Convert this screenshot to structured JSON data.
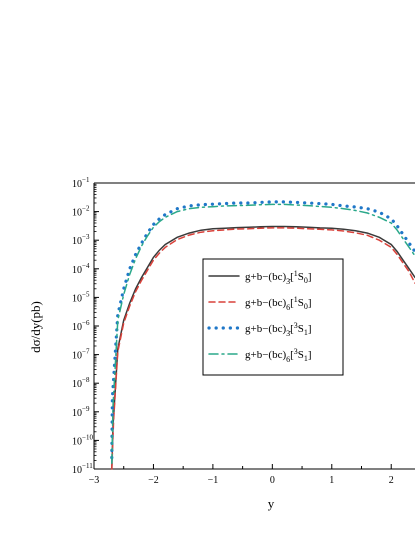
{
  "chart_data": {
    "type": "line",
    "xlabel": "y",
    "ylabel": "dσ/dy(pb)",
    "xlim": [
      -3,
      2.4
    ],
    "ylim_log10": [
      -11,
      -1
    ],
    "yscale": "log",
    "x_ticks": [
      "−3",
      "−2",
      "−1",
      "0",
      "1",
      "2"
    ],
    "y_ticks": [
      {
        "exp": -11,
        "base": "10",
        "sup": "−11"
      },
      {
        "exp": -10,
        "base": "10",
        "sup": "−10"
      },
      {
        "exp": -9,
        "base": "10",
        "sup": "−9"
      },
      {
        "exp": -8,
        "base": "10",
        "sup": "−8"
      },
      {
        "exp": -7,
        "base": "10",
        "sup": "−7"
      },
      {
        "exp": -6,
        "base": "10",
        "sup": "−6"
      },
      {
        "exp": -5,
        "base": "10",
        "sup": "−5"
      },
      {
        "exp": -4,
        "base": "10",
        "sup": "−4"
      },
      {
        "exp": -3,
        "base": "10",
        "sup": "−3"
      },
      {
        "exp": -2,
        "base": "10",
        "sup": "−2"
      },
      {
        "exp": -1,
        "base": "10",
        "sup": "−1"
      }
    ],
    "grid": false,
    "legend_position": "center",
    "series": [
      {
        "name": "g+b−(bc)3[1S0]",
        "label_parts": [
          "g+b−(bc)",
          "3̄",
          "[",
          "1",
          "S",
          "0",
          "]"
        ],
        "color": "#3a3a3a",
        "style": "solid",
        "x": [
          -2.7,
          -2.68,
          -2.6,
          -2.5,
          -2.4,
          -2.3,
          -2.2,
          -2.1,
          -2.0,
          -1.9,
          -1.8,
          -1.6,
          -1.4,
          -1.2,
          -1.0,
          -0.8,
          -0.6,
          -0.4,
          -0.2,
          0.0,
          0.2,
          0.4,
          0.6,
          0.8,
          1.0,
          1.2,
          1.4,
          1.6,
          1.8,
          2.0,
          2.1,
          2.2,
          2.3,
          2.4
        ],
        "log10_y": [
          -11,
          -9.5,
          -6.8,
          -5.8,
          -5.2,
          -4.7,
          -4.3,
          -3.95,
          -3.6,
          -3.35,
          -3.15,
          -2.9,
          -2.75,
          -2.65,
          -2.6,
          -2.58,
          -2.56,
          -2.55,
          -2.53,
          -2.52,
          -2.52,
          -2.53,
          -2.55,
          -2.57,
          -2.58,
          -2.62,
          -2.67,
          -2.75,
          -2.9,
          -3.15,
          -3.4,
          -3.7,
          -4.0,
          -4.3
        ]
      },
      {
        "name": "g+b−(bc)6[1S0]",
        "label_parts": [
          "g+b−(bc)",
          "6",
          "[",
          "1",
          "S",
          "0",
          "]"
        ],
        "color": "#d9413a",
        "style": "dashed",
        "x": [
          -2.7,
          -2.67,
          -2.6,
          -2.5,
          -2.4,
          -2.3,
          -2.2,
          -2.1,
          -2.0,
          -1.9,
          -1.8,
          -1.6,
          -1.4,
          -1.2,
          -1.0,
          -0.8,
          -0.6,
          -0.4,
          -0.2,
          0.0,
          0.2,
          0.4,
          0.6,
          0.8,
          1.0,
          1.2,
          1.4,
          1.6,
          1.8,
          2.0,
          2.1,
          2.2,
          2.3,
          2.4
        ],
        "log10_y": [
          -11,
          -9.3,
          -6.9,
          -5.9,
          -5.3,
          -4.8,
          -4.4,
          -4.05,
          -3.7,
          -3.45,
          -3.25,
          -2.98,
          -2.82,
          -2.72,
          -2.67,
          -2.64,
          -2.61,
          -2.6,
          -2.58,
          -2.57,
          -2.57,
          -2.58,
          -2.6,
          -2.62,
          -2.64,
          -2.68,
          -2.74,
          -2.83,
          -3.0,
          -3.25,
          -3.5,
          -3.8,
          -4.1,
          -4.5
        ]
      },
      {
        "name": "g+b−(bc)3[3S1]",
        "label_parts": [
          "g+b−(bc)",
          "3̄",
          "[",
          "3",
          "S",
          "1",
          "]"
        ],
        "color": "#1f77c8",
        "style": "dotted",
        "x": [
          -2.7,
          -2.69,
          -2.6,
          -2.5,
          -2.4,
          -2.3,
          -2.2,
          -2.1,
          -2.0,
          -1.9,
          -1.8,
          -1.6,
          -1.4,
          -1.2,
          -1.0,
          -0.8,
          -0.6,
          -0.4,
          -0.2,
          0.0,
          0.2,
          0.4,
          0.6,
          0.8,
          1.0,
          1.2,
          1.4,
          1.6,
          1.8,
          2.0,
          2.1,
          2.2,
          2.3,
          2.4
        ],
        "log10_y": [
          -10.6,
          -8.5,
          -5.6,
          -4.7,
          -4.0,
          -3.5,
          -3.1,
          -2.75,
          -2.45,
          -2.25,
          -2.1,
          -1.9,
          -1.8,
          -1.76,
          -1.74,
          -1.72,
          -1.7,
          -1.7,
          -1.68,
          -1.66,
          -1.66,
          -1.68,
          -1.7,
          -1.72,
          -1.75,
          -1.8,
          -1.84,
          -1.9,
          -2.02,
          -2.25,
          -2.5,
          -2.8,
          -3.1,
          -3.4
        ]
      },
      {
        "name": "g+b−(bc)6[3S1]",
        "label_parts": [
          "g+b−(bc)",
          "6",
          "[",
          "3",
          "S",
          "1",
          "]"
        ],
        "color": "#2aa88a",
        "style": "dashdot",
        "x": [
          -2.7,
          -2.68,
          -2.6,
          -2.5,
          -2.4,
          -2.3,
          -2.2,
          -2.1,
          -2.0,
          -1.9,
          -1.8,
          -1.6,
          -1.4,
          -1.2,
          -1.0,
          -0.8,
          -0.6,
          -0.4,
          -0.2,
          0.0,
          0.2,
          0.4,
          0.6,
          0.8,
          1.0,
          1.2,
          1.4,
          1.6,
          1.8,
          2.0,
          2.1,
          2.2,
          2.3,
          2.4
        ],
        "log10_y": [
          -10.8,
          -8.8,
          -5.8,
          -4.9,
          -4.2,
          -3.65,
          -3.2,
          -2.85,
          -2.55,
          -2.35,
          -2.2,
          -2.0,
          -1.9,
          -1.85,
          -1.83,
          -1.8,
          -1.79,
          -1.78,
          -1.76,
          -1.75,
          -1.75,
          -1.77,
          -1.79,
          -1.82,
          -1.85,
          -1.9,
          -1.96,
          -2.05,
          -2.2,
          -2.4,
          -2.65,
          -2.95,
          -3.25,
          -3.55
        ]
      }
    ]
  }
}
